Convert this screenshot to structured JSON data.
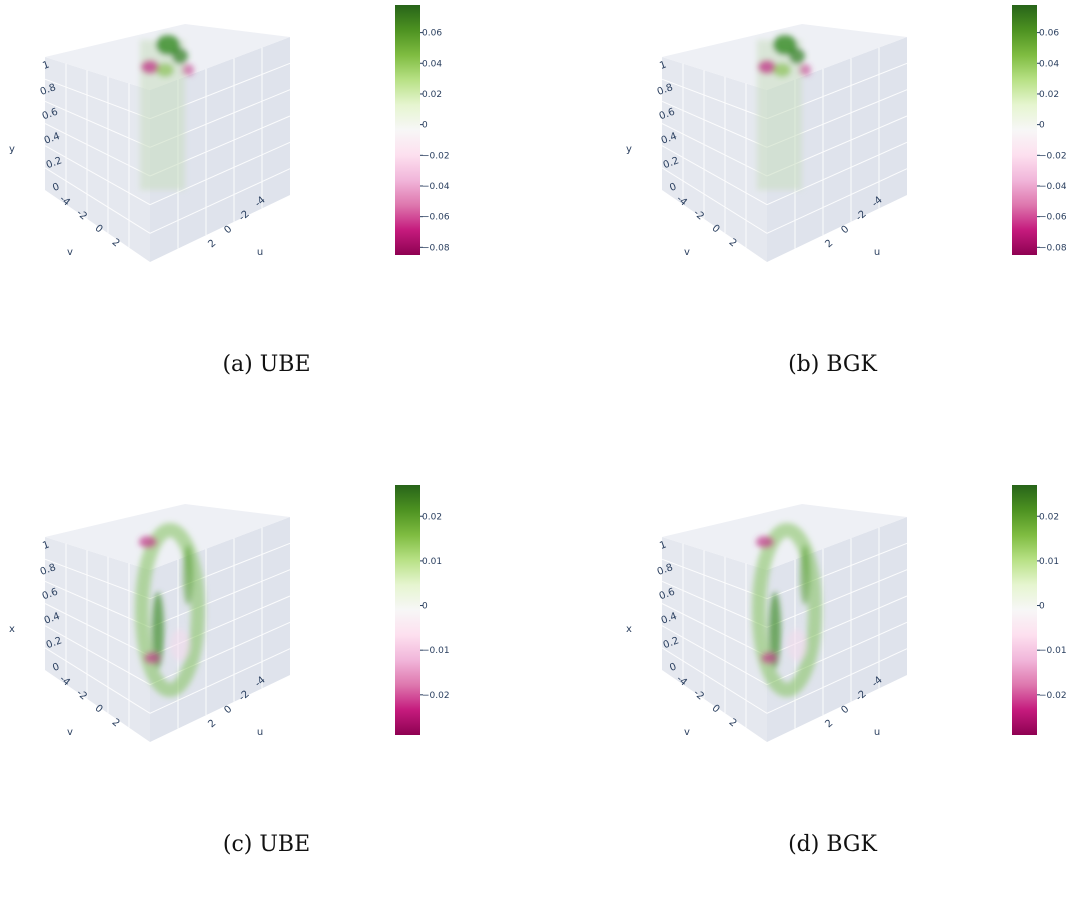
{
  "panels": [
    {
      "caption": "(a) UBE",
      "chart_data": {
        "type": "3d-volume",
        "axes": {
          "x": "u",
          "y": "v",
          "z": "y"
        },
        "x_ticks": [
          "-4",
          "-2",
          "0",
          "2"
        ],
        "y_ticks": [
          "-4",
          "-2",
          "0",
          "2"
        ],
        "z_ticks": [
          "0",
          "0.2",
          "0.4",
          "0.6",
          "0.8",
          "1"
        ],
        "colorbar": {
          "colorscale": "PiYG",
          "range": [
            -0.085,
            0.078
          ],
          "ticks": [
            0.06,
            0.04,
            0.02,
            0,
            -0.02,
            -0.04,
            -0.06,
            -0.08
          ],
          "tick_labels": [
            "0.06",
            "0.04",
            "0.02",
            "0",
            "−0.02",
            "−0.04",
            "−0.06",
            "−0.08"
          ]
        },
        "shape": "column"
      }
    },
    {
      "caption": "(b) BGK",
      "chart_data": {
        "type": "3d-volume",
        "axes": {
          "x": "u",
          "y": "v",
          "z": "y"
        },
        "x_ticks": [
          "-4",
          "-2",
          "0",
          "2"
        ],
        "y_ticks": [
          "-4",
          "-2",
          "0",
          "2"
        ],
        "z_ticks": [
          "0",
          "0.2",
          "0.4",
          "0.6",
          "0.8",
          "1"
        ],
        "colorbar": {
          "colorscale": "PiYG",
          "range": [
            -0.085,
            0.078
          ],
          "ticks": [
            0.06,
            0.04,
            0.02,
            0,
            -0.02,
            -0.04,
            -0.06,
            -0.08
          ],
          "tick_labels": [
            "0.06",
            "0.04",
            "0.02",
            "0",
            "−0.02",
            "−0.04",
            "−0.06",
            "−0.08"
          ]
        },
        "shape": "column"
      }
    },
    {
      "caption": "(c) UBE",
      "chart_data": {
        "type": "3d-volume",
        "axes": {
          "x": "u",
          "y": "v",
          "z": "x"
        },
        "x_ticks": [
          "-4",
          "-2",
          "0",
          "2"
        ],
        "y_ticks": [
          "-4",
          "-2",
          "0",
          "2"
        ],
        "z_ticks": [
          "0",
          "0.2",
          "0.4",
          "0.6",
          "0.8",
          "1"
        ],
        "colorbar": {
          "colorscale": "PiYG",
          "range": [
            -0.029,
            0.027
          ],
          "ticks": [
            0.02,
            0.01,
            0,
            -0.01,
            -0.02
          ],
          "tick_labels": [
            "0.02",
            "0.01",
            "0",
            "−0.01",
            "−0.02"
          ]
        },
        "shape": "ring"
      }
    },
    {
      "caption": "(d) BGK",
      "chart_data": {
        "type": "3d-volume",
        "axes": {
          "x": "u",
          "y": "v",
          "z": "x"
        },
        "x_ticks": [
          "-4",
          "-2",
          "0",
          "2"
        ],
        "y_ticks": [
          "-4",
          "-2",
          "0",
          "2"
        ],
        "z_ticks": [
          "0",
          "0.2",
          "0.4",
          "0.6",
          "0.8",
          "1"
        ],
        "colorbar": {
          "colorscale": "PiYG",
          "range": [
            -0.029,
            0.027
          ],
          "ticks": [
            0.02,
            0.01,
            0,
            -0.01,
            -0.02
          ],
          "tick_labels": [
            "0.02",
            "0.01",
            "0",
            "−0.01",
            "−0.02"
          ]
        },
        "shape": "ring"
      }
    }
  ]
}
